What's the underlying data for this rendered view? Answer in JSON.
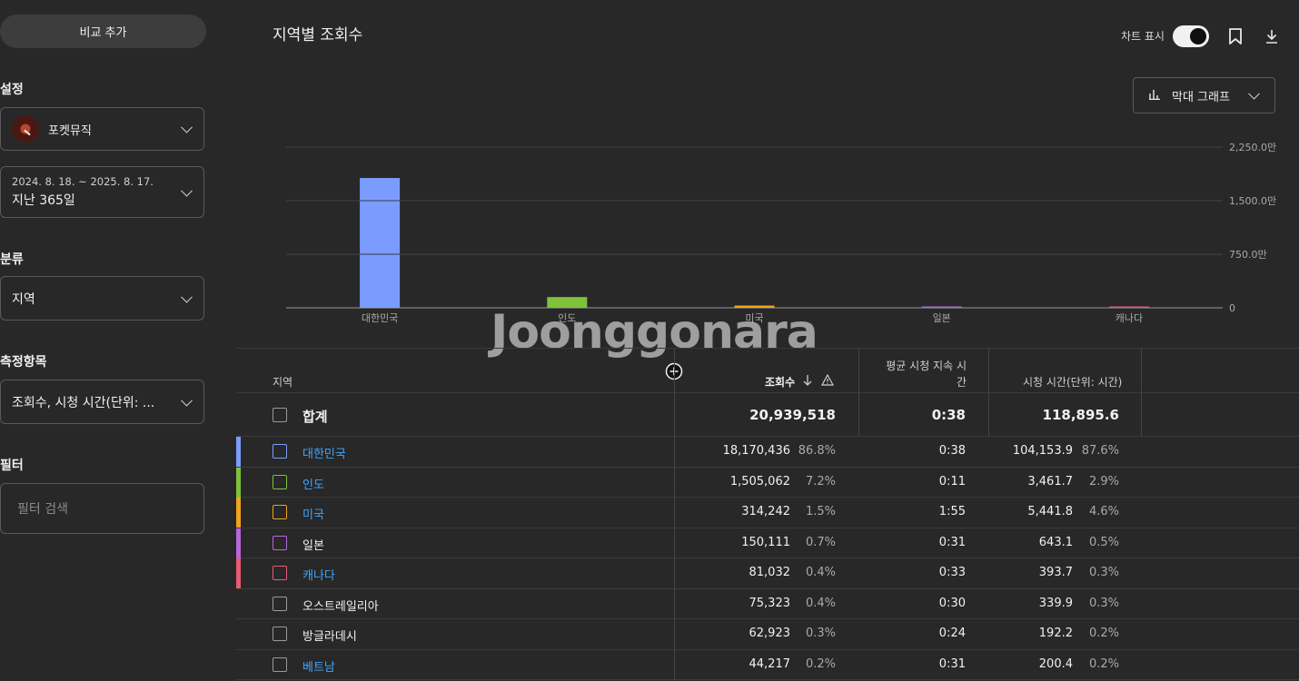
{
  "sidebar": {
    "compare_button": "비교 추가",
    "settings_label": "설정",
    "channel_name": "포켓뮤직",
    "date_range": "2024. 8. 18. ~ 2025. 8. 17.",
    "date_preset": "지난 365일",
    "category_label": "분류",
    "category_value": "지역",
    "metrics_label": "측정항목",
    "metrics_value": "조회수, 시청 시간(단위: ...",
    "filter_label": "필터",
    "filter_placeholder": "필터 검색"
  },
  "header": {
    "title": "지역별 조회수",
    "chart_toggle_label": "차트 표시",
    "chart_toggle_on": true,
    "chart_type_label": "막대 그래프"
  },
  "chart_data": {
    "type": "bar",
    "categories": [
      "대한민국",
      "인도",
      "미국",
      "일본",
      "캐나다"
    ],
    "values": [
      18170436,
      1505062,
      314242,
      150111,
      81032
    ],
    "colors": [
      "#7b9cff",
      "#7fc23a",
      "#f0a31c",
      "#b865e0",
      "#e85a73"
    ],
    "ytick_labels": [
      "0",
      "750.0만",
      "1,500.0만",
      "2,250.0만"
    ],
    "ylim": [
      0,
      22500000
    ]
  },
  "watermark": "Joonggonara",
  "table": {
    "headers": {
      "region": "지역",
      "views": "조회수",
      "avg_duration": "평균 시청 지속 시간",
      "watch_time": "시청 시간(단위: 시간)"
    },
    "total": {
      "label": "합계",
      "views": "20,939,518",
      "avg": "0:38",
      "watch": "118,895.6"
    },
    "rows": [
      {
        "name": "대한민국",
        "views": "18,170,436",
        "vpct": "86.8%",
        "avg": "0:38",
        "watch": "104,153.9",
        "wpct": "87.6%",
        "color": "#7b9cff",
        "link": true
      },
      {
        "name": "인도",
        "views": "1,505,062",
        "vpct": "7.2%",
        "avg": "0:11",
        "watch": "3,461.7",
        "wpct": "2.9%",
        "color": "#7fc23a",
        "link": true
      },
      {
        "name": "미국",
        "views": "314,242",
        "vpct": "1.5%",
        "avg": "1:55",
        "watch": "5,441.8",
        "wpct": "4.6%",
        "color": "#f0a31c",
        "link": true
      },
      {
        "name": "일본",
        "views": "150,111",
        "vpct": "0.7%",
        "avg": "0:31",
        "watch": "643.1",
        "wpct": "0.5%",
        "color": "#b865e0",
        "link": false
      },
      {
        "name": "캐나다",
        "views": "81,032",
        "vpct": "0.4%",
        "avg": "0:33",
        "watch": "393.7",
        "wpct": "0.3%",
        "color": "#e85a73",
        "link": true
      },
      {
        "name": "오스트레일리아",
        "views": "75,323",
        "vpct": "0.4%",
        "avg": "0:30",
        "watch": "339.9",
        "wpct": "0.3%",
        "color": "",
        "link": false
      },
      {
        "name": "방글라데시",
        "views": "62,923",
        "vpct": "0.3%",
        "avg": "0:24",
        "watch": "192.2",
        "wpct": "0.2%",
        "color": "",
        "link": false
      },
      {
        "name": "베트남",
        "views": "44,217",
        "vpct": "0.2%",
        "avg": "0:31",
        "watch": "200.4",
        "wpct": "0.2%",
        "color": "",
        "link": true
      }
    ]
  }
}
